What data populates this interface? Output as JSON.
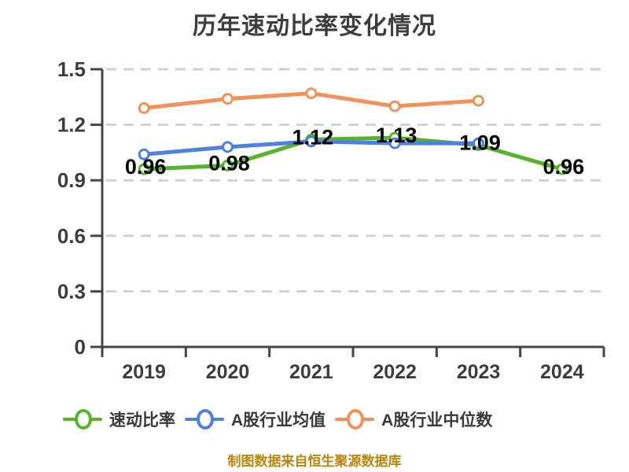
{
  "title": "历年速动比率变化情况",
  "footer": "制图数据来自恒生聚源数据库",
  "colors": {
    "background": "#ffffff",
    "title_text": "#3d3d3d",
    "axis": "#454545",
    "grid": "#d2d2d2",
    "tick_text": "#3d3d3d",
    "data_label_text": "#000000",
    "legend_text": "#3a3a3a",
    "footer_text": "#b8860b",
    "series_green": "#55b42c",
    "series_blue": "#4d80e0",
    "series_orange": "#f2915c"
  },
  "chart_data": {
    "type": "line",
    "title": "历年速动比率变化情况",
    "xlabel": "",
    "ylabel": "",
    "categories": [
      "2019",
      "2020",
      "2021",
      "2022",
      "2023",
      "2024"
    ],
    "series": [
      {
        "name": "速动比率",
        "color": "#55b42c",
        "values": [
          0.96,
          0.98,
          1.12,
          1.13,
          1.09,
          0.96
        ],
        "data_labels": [
          "0.96",
          "0.98",
          "1.12",
          "1.13",
          "1.09",
          "0.96"
        ]
      },
      {
        "name": "A股行业均值",
        "color": "#4d80e0",
        "values": [
          1.04,
          1.08,
          1.11,
          1.1,
          1.1,
          null
        ],
        "data_labels": null
      },
      {
        "name": "A股行业中位数",
        "color": "#f2915c",
        "values": [
          1.29,
          1.34,
          1.37,
          1.3,
          1.33,
          null
        ],
        "data_labels": null
      }
    ],
    "ylim": [
      0,
      1.5
    ],
    "yticks": [
      0,
      0.3,
      0.6,
      0.9,
      1.2,
      1.5
    ],
    "ytick_labels": [
      "0",
      "0.3",
      "0.6",
      "0.9",
      "1.2",
      "1.5"
    ],
    "grid": true,
    "grid_style": "dashed",
    "legend_position": "bottom",
    "marker": "circle-white-fill"
  }
}
